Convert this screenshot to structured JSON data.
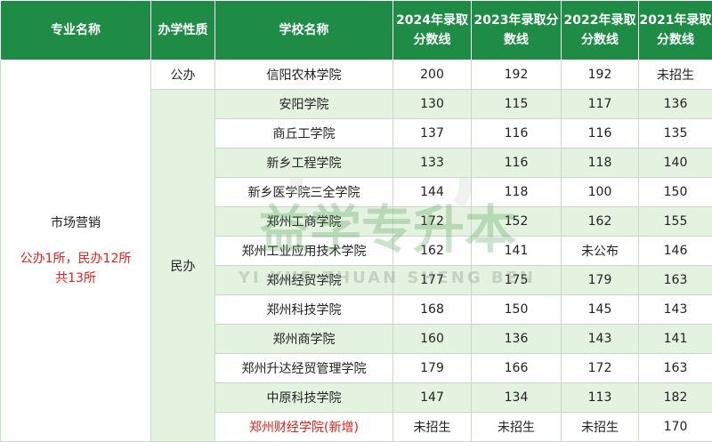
{
  "headers": {
    "major": "专业名称",
    "nature": "办学性质",
    "school": "学校名称",
    "y2024": "2024年录取分数线",
    "y2023": "2023年录取分数线",
    "y2022": "2022年录取分数线",
    "y2021": "2021年录取分数线"
  },
  "major": {
    "name": "市场营销",
    "note_line1": "公办1所，民办12所",
    "note_line2": "共13所"
  },
  "nature": {
    "public": "公办",
    "private": "民办"
  },
  "rows": [
    {
      "school": "信阳农林学院",
      "y2024": "200",
      "y2023": "192",
      "y2022": "192",
      "y2021": "未招生"
    },
    {
      "school": "安阳学院",
      "y2024": "130",
      "y2023": "115",
      "y2022": "117",
      "y2021": "136"
    },
    {
      "school": "商丘工学院",
      "y2024": "137",
      "y2023": "116",
      "y2022": "116",
      "y2021": "135"
    },
    {
      "school": "新乡工程学院",
      "y2024": "133",
      "y2023": "116",
      "y2022": "118",
      "y2021": "140"
    },
    {
      "school": "新乡医学院三全学院",
      "y2024": "144",
      "y2023": "118",
      "y2022": "100",
      "y2021": "150"
    },
    {
      "school": "郑州工商学院",
      "y2024": "172",
      "y2023": "152",
      "y2022": "162",
      "y2021": "155"
    },
    {
      "school": "郑州工业应用技术学院",
      "y2024": "162",
      "y2023": "141",
      "y2022": "未公布",
      "y2021": "146"
    },
    {
      "school": "郑州经贸学院",
      "y2024": "177",
      "y2023": "175",
      "y2022": "179",
      "y2021": "163"
    },
    {
      "school": "郑州科技学院",
      "y2024": "168",
      "y2023": "150",
      "y2022": "145",
      "y2021": "143"
    },
    {
      "school": "郑州商学院",
      "y2024": "160",
      "y2023": "136",
      "y2022": "143",
      "y2021": "141"
    },
    {
      "school": "郑州升达经贸管理学院",
      "y2024": "179",
      "y2023": "166",
      "y2022": "172",
      "y2021": "163"
    },
    {
      "school": "中原科技学院",
      "y2024": "147",
      "y2023": "134",
      "y2022": "113",
      "y2021": "182"
    },
    {
      "school": "郑州财经学院(新增)",
      "y2024": "未招生",
      "y2023": "未招生",
      "y2022": "未招生",
      "y2021": "170"
    }
  ],
  "watermark": {
    "main": "益学专升本",
    "sub": "YI XUE ZHUAN SHENG BEN",
    "color": "#4a9a4a"
  }
}
